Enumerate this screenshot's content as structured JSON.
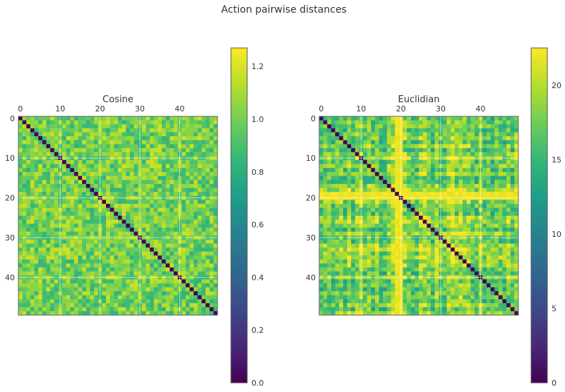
{
  "figure": {
    "title": "Action pairwise distances"
  },
  "colormap": {
    "name": "viridis",
    "stops": [
      "#440154",
      "#482878",
      "#3e4989",
      "#31688e",
      "#26828e",
      "#1f9e89",
      "#35b779",
      "#6ece58",
      "#b5de2b",
      "#fde725"
    ]
  },
  "chart_data": [
    {
      "type": "heatmap",
      "title": "Cosine",
      "size": 50,
      "diagonal": 0.0,
      "value_range": [
        0.0,
        1.27
      ],
      "typical_offdiagonal_range": [
        0.8,
        1.2
      ],
      "x_ticks": [
        "0",
        "10",
        "20",
        "30",
        "40"
      ],
      "y_ticks": [
        "0",
        "10",
        "20",
        "30",
        "40"
      ],
      "x_tick_values": [
        0,
        10,
        20,
        30,
        40
      ],
      "colorbar_ticks": [
        "0.0",
        "0.2",
        "0.4",
        "0.6",
        "0.8",
        "1.0",
        "1.2"
      ],
      "colorbar_tick_values": [
        0.0,
        0.2,
        0.4,
        0.6,
        0.8,
        1.0,
        1.2
      ],
      "x_tick_position": "top",
      "grid": true
    },
    {
      "type": "heatmap",
      "title": "Euclidian",
      "size": 50,
      "diagonal": 0.0,
      "value_range": [
        0.0,
        22.5
      ],
      "typical_offdiagonal_range": [
        14,
        21
      ],
      "bright_rows": [
        19
      ],
      "bright_cols": [
        19,
        20
      ],
      "x_ticks": [
        "0",
        "10",
        "20",
        "30",
        "40"
      ],
      "y_ticks": [
        "0",
        "10",
        "20",
        "30",
        "40"
      ],
      "x_tick_values": [
        0,
        10,
        20,
        30,
        40
      ],
      "colorbar_ticks": [
        "0",
        "5",
        "10",
        "15",
        "20"
      ],
      "colorbar_tick_values": [
        0,
        5,
        10,
        15,
        20
      ],
      "x_tick_position": "top",
      "grid": true
    }
  ]
}
